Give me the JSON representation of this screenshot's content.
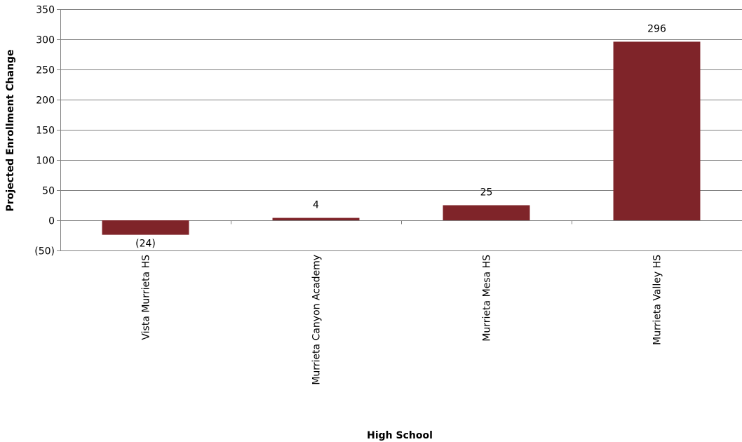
{
  "chart_data": {
    "type": "bar",
    "categories": [
      "Vista Murrieta HS",
      "Murrieta Canyon Academy",
      "Murrieta Mesa HS",
      "Murrieta Valley HS"
    ],
    "values": [
      -24,
      4,
      25,
      296
    ],
    "value_labels": [
      "(24)",
      "4",
      "25",
      "296"
    ],
    "title": "",
    "xlabel": "High School",
    "ylabel": "Projected Enrollment Change",
    "ylim": [
      -50,
      350
    ],
    "yticks": [
      -50,
      0,
      50,
      100,
      150,
      200,
      250,
      300,
      350
    ],
    "ytick_labels": [
      "(50)",
      "0",
      "50",
      "100",
      "150",
      "200",
      "250",
      "300",
      "350"
    ],
    "grid": true,
    "legend": "none",
    "bar_color": "#7F2429",
    "grid_color": "#808080"
  }
}
